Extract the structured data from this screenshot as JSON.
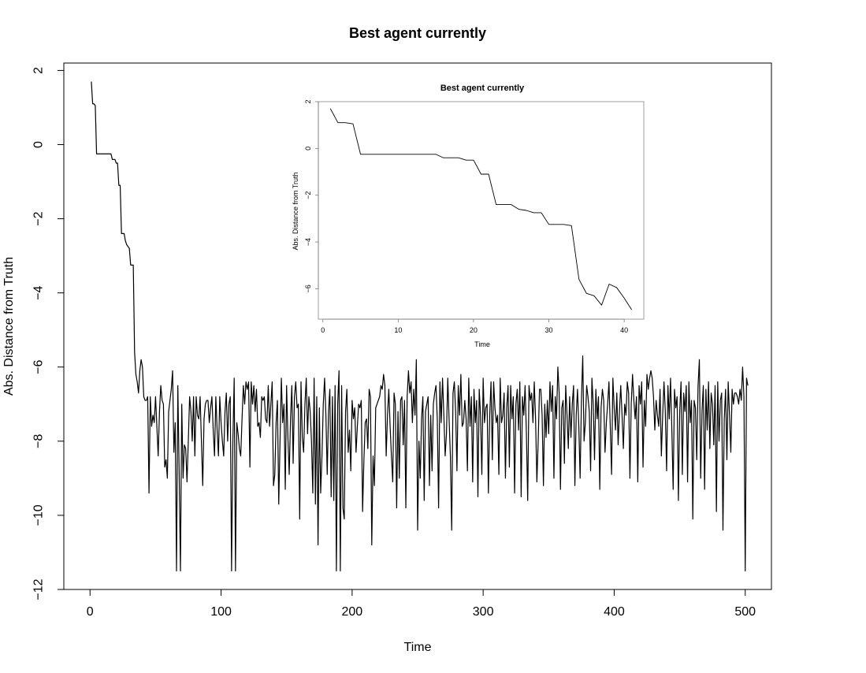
{
  "chart_data": [
    {
      "type": "line",
      "title": "Best agent currently",
      "xlabel": "Time",
      "ylabel": "Abs. Distance from Truth",
      "xlim": [
        -20,
        520
      ],
      "ylim": [
        -12.0,
        2.2
      ],
      "x_ticks": [
        0,
        100,
        200,
        300,
        400,
        500
      ],
      "y_ticks": [
        2,
        0,
        -2,
        -4,
        -6,
        -8,
        -10,
        -12
      ],
      "grid": false,
      "line_color": "#000000",
      "series": [
        {
          "x_start": 1,
          "values": [
            1.7,
            1.1,
            1.1,
            1.05,
            -0.25,
            -0.25,
            -0.25,
            -0.25,
            -0.25,
            -0.25,
            -0.25,
            -0.25,
            -0.25,
            -0.25,
            -0.25,
            -0.25,
            -0.4,
            -0.4,
            -0.4,
            -0.5,
            -0.5,
            -1.1,
            -1.1,
            -2.4,
            -2.4,
            -2.4,
            -2.6,
            -2.7,
            -2.75,
            -2.8,
            -3.25,
            -3.25,
            -3.25,
            -5.6,
            -6.2,
            -6.4,
            -6.7,
            -6.1,
            -5.8,
            -6.0,
            -6.8,
            -6.9,
            -6.9,
            -6.8,
            -9.4,
            -6.8,
            -7.6,
            -7.3,
            -7.5,
            -6.8,
            -7.6,
            -8.4,
            -7.2,
            -6.5,
            -6.9,
            -7.0,
            -8.7,
            -8.5,
            -9.0,
            -7.2,
            -6.9,
            -6.6,
            -6.1,
            -8.3,
            -7.5,
            -11.5,
            -6.5,
            -8.8,
            -11.5,
            -7.0,
            -9.0,
            -8.1,
            -8.2,
            -9.1,
            -8.0,
            -6.8,
            -7.2,
            -8.0,
            -6.8,
            -8.4,
            -6.8,
            -7.3,
            -7.4,
            -6.8,
            -8.0,
            -9.2,
            -7.4,
            -7.0,
            -6.9,
            -6.9,
            -7.5,
            -7.1,
            -6.8,
            -7.7,
            -8.4,
            -6.8,
            -7.7,
            -8.4,
            -6.8,
            -7.5,
            -8.0,
            -8.4,
            -7.2,
            -6.7,
            -8.0,
            -7.0,
            -6.8,
            -11.5,
            -8.0,
            -6.3,
            -11.5,
            -7.5,
            -7.8,
            -8.2,
            -8.4,
            -7.4,
            -6.5,
            -7.0,
            -6.4,
            -6.6,
            -6.4,
            -8.7,
            -6.4,
            -7.0,
            -6.5,
            -7.2,
            -6.6,
            -7.6,
            -7.5,
            -7.9,
            -6.8,
            -6.9,
            -6.8,
            -7.4,
            -7.5,
            -6.5,
            -7.6,
            -7.0,
            -6.4,
            -9.2,
            -8.9,
            -7.5,
            -6.9,
            -9.7,
            -8.0,
            -6.3,
            -7.5,
            -7.0,
            -9.3,
            -6.5,
            -7.9,
            -8.9,
            -7.4,
            -6.5,
            -8.6,
            -6.8,
            -6.4,
            -7.1,
            -7.0,
            -10.1,
            -6.4,
            -7.9,
            -8.3,
            -7.0,
            -6.3,
            -7.8,
            -6.8,
            -7.2,
            -8.0,
            -9.4,
            -6.3,
            -9.7,
            -6.8,
            -10.8,
            -7.1,
            -9.4,
            -8.4,
            -7.0,
            -6.3,
            -7.3,
            -8.9,
            -7.2,
            -6.6,
            -9.5,
            -6.8,
            -9.6,
            -6.5,
            -11.5,
            -7.0,
            -6.1,
            -11.5,
            -6.5,
            -9.8,
            -10.1,
            -7.2,
            -6.6,
            -8.3,
            -7.7,
            -8.8,
            -6.9,
            -7.4,
            -7.1,
            -8.3,
            -7.6,
            -7.0,
            -7.1,
            -6.9,
            -9.9,
            -8.5,
            -7.5,
            -7.4,
            -8.2,
            -6.6,
            -6.8,
            -10.8,
            -8.4,
            -9.2,
            -7.1,
            -7.0,
            -6.9,
            -6.8,
            -6.5,
            -6.6,
            -6.2,
            -6.5,
            -8.4,
            -7.3,
            -6.6,
            -7.6,
            -8.4,
            -9.1,
            -6.7,
            -7.0,
            -9.8,
            -7.2,
            -9.0,
            -6.9,
            -6.8,
            -8.1,
            -6.9,
            -9.8,
            -6.8,
            -6.1,
            -6.7,
            -6.4,
            -7.5,
            -6.6,
            -7.3,
            -5.8,
            -10.4,
            -8.0,
            -9.0,
            -7.4,
            -6.8,
            -9.6,
            -7.2,
            -7.0,
            -6.8,
            -9.2,
            -7.3,
            -8.8,
            -7.0,
            -6.7,
            -6.5,
            -7.4,
            -9.8,
            -6.4,
            -7.5,
            -6.3,
            -7.3,
            -8.4,
            -7.8,
            -6.3,
            -7.4,
            -8.4,
            -10.4,
            -6.7,
            -6.4,
            -7.2,
            -8.8,
            -6.5,
            -7.3,
            -6.2,
            -7.6,
            -7.5,
            -6.9,
            -7.4,
            -8.8,
            -6.3,
            -7.6,
            -6.8,
            -9.1,
            -6.6,
            -7.5,
            -6.9,
            -9.5,
            -6.6,
            -7.3,
            -8.9,
            -6.3,
            -7.5,
            -7.1,
            -7.0,
            -9.4,
            -7.3,
            -6.4,
            -8.5,
            -6.4,
            -7.1,
            -7.5,
            -7.3,
            -8.9,
            -6.3,
            -7.5,
            -7.3,
            -6.7,
            -9.0,
            -7.1,
            -6.5,
            -8.7,
            -6.5,
            -7.4,
            -6.8,
            -9.4,
            -7.0,
            -6.6,
            -7.7,
            -6.4,
            -9.5,
            -6.8,
            -7.3,
            -6.5,
            -7.8,
            -9.6,
            -6.5,
            -6.9,
            -6.7,
            -7.5,
            -6.4,
            -7.4,
            -9.1,
            -8.0,
            -6.6,
            -6.6,
            -7.3,
            -9.2,
            -7.0,
            -7.9,
            -6.9,
            -7.8,
            -6.4,
            -7.2,
            -6.5,
            -9.0,
            -6.8,
            -7.4,
            -6.0,
            -6.7,
            -9.3,
            -7.1,
            -6.9,
            -8.6,
            -6.5,
            -7.3,
            -8.2,
            -6.8,
            -7.9,
            -7.0,
            -6.5,
            -9.2,
            -7.3,
            -6.6,
            -7.6,
            -9.0,
            -6.9,
            -5.7,
            -8.0,
            -7.5,
            -6.5,
            -6.8,
            -7.2,
            -8.8,
            -6.3,
            -7.0,
            -8.5,
            -6.6,
            -7.4,
            -6.8,
            -9.3,
            -7.1,
            -6.6,
            -6.9,
            -8.3,
            -7.5,
            -7.0,
            -6.4,
            -7.6,
            -8.9,
            -6.3,
            -7.1,
            -7.7,
            -6.7,
            -8.1,
            -7.2,
            -6.5,
            -7.3,
            -8.2,
            -7.0,
            -7.3,
            -6.4,
            -6.7,
            -9.0,
            -7.0,
            -6.2,
            -6.9,
            -7.4,
            -6.8,
            -9.1,
            -6.5,
            -7.0,
            -6.4,
            -8.7,
            -6.9,
            -7.6,
            -6.2,
            -6.6,
            -6.3,
            -6.1,
            -6.3,
            -6.8,
            -7.7,
            -6.9,
            -7.3,
            -7.6,
            -6.6,
            -8.4,
            -7.3,
            -6.4,
            -7.2,
            -8.8,
            -6.5,
            -7.4,
            -6.3,
            -7.7,
            -9.3,
            -6.6,
            -7.1,
            -6.8,
            -9.6,
            -7.2,
            -6.4,
            -8.9,
            -6.7,
            -7.2,
            -6.5,
            -9.1,
            -6.4,
            -7.5,
            -6.9,
            -10.1,
            -6.9,
            -7.1,
            -8.5,
            -6.5,
            -5.8,
            -9.0,
            -7.2,
            -6.5,
            -9.3,
            -6.6,
            -7.7,
            -6.4,
            -8.2,
            -6.7,
            -7.0,
            -8.1,
            -6.5,
            -9.9,
            -6.4,
            -8.0,
            -6.9,
            -6.7,
            -10.4,
            -7.4,
            -6.6,
            -8.5,
            -6.4,
            -7.3,
            -8.3,
            -6.6,
            -7.0,
            -6.7,
            -6.7,
            -6.8,
            -7.0,
            -6.6,
            -6.9,
            -6.0,
            -6.8,
            -11.5,
            -6.3,
            -6.5
          ]
        }
      ]
    },
    {
      "type": "line",
      "title": "Best agent currently",
      "xlabel": "Time",
      "ylabel": "Abs. Distance from Truth",
      "xlim": [
        -0.6,
        42.6
      ],
      "ylim": [
        -7.3,
        2.0
      ],
      "x_ticks": [
        0,
        10,
        20,
        30,
        40
      ],
      "y_ticks": [
        2,
        0,
        -2,
        -4,
        -6
      ],
      "grid": false,
      "line_color": "#000000",
      "series": [
        {
          "x": [
            1,
            2,
            3,
            4,
            5,
            6,
            7,
            8,
            9,
            10,
            11,
            12,
            13,
            14,
            15,
            16,
            17,
            18,
            19,
            20,
            21,
            22,
            23,
            24,
            25,
            26,
            27,
            28,
            29,
            30,
            31,
            32,
            33,
            34,
            35,
            36,
            37,
            38,
            39,
            40,
            41
          ],
          "values": [
            1.7,
            1.1,
            1.1,
            1.05,
            -0.25,
            -0.25,
            -0.25,
            -0.25,
            -0.25,
            -0.25,
            -0.25,
            -0.25,
            -0.25,
            -0.25,
            -0.25,
            -0.4,
            -0.4,
            -0.4,
            -0.5,
            -0.5,
            -1.1,
            -1.1,
            -2.4,
            -2.4,
            -2.4,
            -2.6,
            -2.65,
            -2.75,
            -2.75,
            -3.25,
            -3.25,
            -3.25,
            -3.3,
            -5.6,
            -6.2,
            -6.3,
            -6.7,
            -5.8,
            -5.95,
            -6.4,
            -6.9
          ]
        }
      ]
    }
  ]
}
